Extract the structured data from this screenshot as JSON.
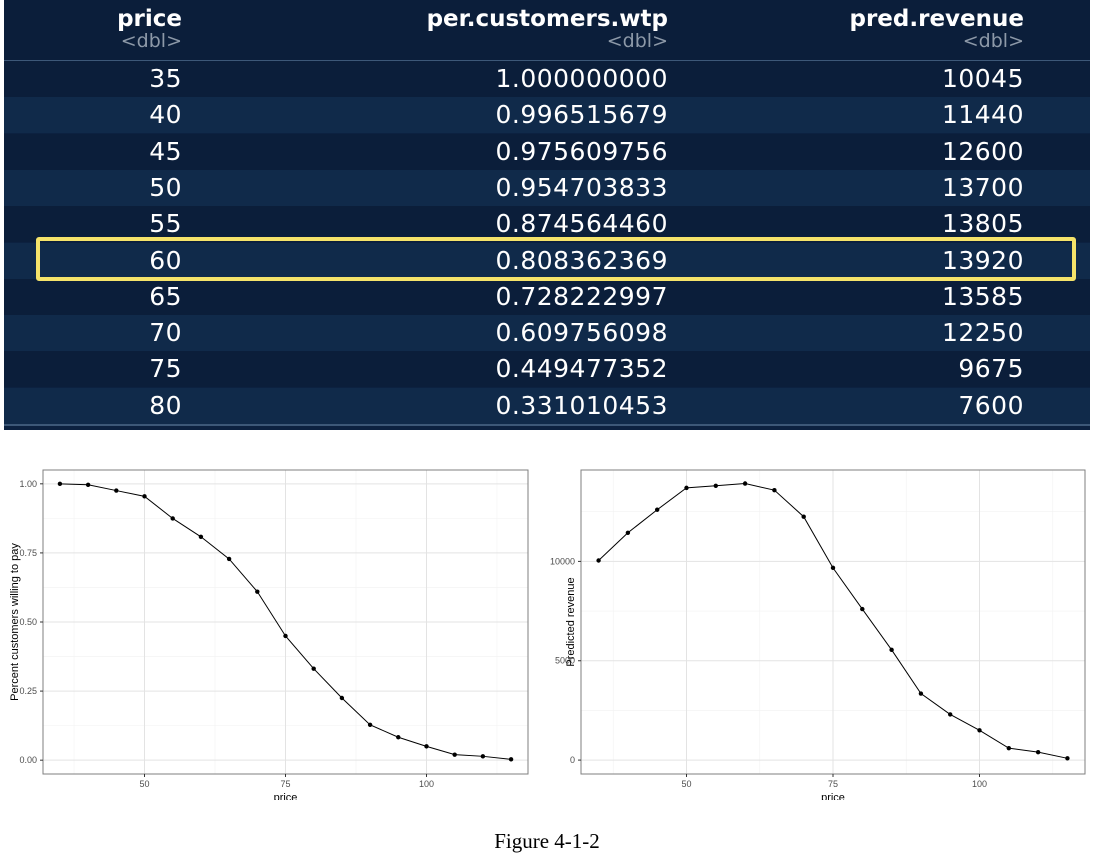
{
  "table": {
    "columns": [
      {
        "name": "price",
        "type": "<dbl>"
      },
      {
        "name": "per.customers.wtp",
        "type": "<dbl>"
      },
      {
        "name": "pred.revenue",
        "type": "<dbl>"
      }
    ],
    "rows": [
      {
        "price": "35",
        "wtp": "1.000000000",
        "revenue": "10045"
      },
      {
        "price": "40",
        "wtp": "0.996515679",
        "revenue": "11440"
      },
      {
        "price": "45",
        "wtp": "0.975609756",
        "revenue": "12600"
      },
      {
        "price": "50",
        "wtp": "0.954703833",
        "revenue": "13700"
      },
      {
        "price": "55",
        "wtp": "0.874564460",
        "revenue": "13805"
      },
      {
        "price": "60",
        "wtp": "0.808362369",
        "revenue": "13920"
      },
      {
        "price": "65",
        "wtp": "0.728222997",
        "revenue": "13585"
      },
      {
        "price": "70",
        "wtp": "0.609756098",
        "revenue": "12250"
      },
      {
        "price": "75",
        "wtp": "0.449477352",
        "revenue": "9675"
      },
      {
        "price": "80",
        "wtp": "0.331010453",
        "revenue": "7600"
      }
    ],
    "highlighted_row_index": 5,
    "colors": {
      "background": "#0c2140",
      "highlight": "#f5e36a"
    }
  },
  "chart_data": [
    {
      "type": "line",
      "title": "",
      "xlabel": "price",
      "ylabel": "Percent customers willing to pay",
      "x": [
        35,
        40,
        45,
        50,
        55,
        60,
        65,
        70,
        75,
        80,
        85,
        90,
        95,
        100,
        105,
        110,
        115
      ],
      "y": [
        1.0,
        0.9965,
        0.9756,
        0.9547,
        0.8746,
        0.8084,
        0.7282,
        0.6098,
        0.4495,
        0.331,
        0.225,
        0.128,
        0.083,
        0.05,
        0.02,
        0.014,
        0.003
      ],
      "xlim": [
        32,
        118
      ],
      "ylim": [
        -0.05,
        1.05
      ],
      "xticks": [
        50,
        75,
        100
      ],
      "yticks": [
        0.0,
        0.25,
        0.5,
        0.75,
        1.0
      ],
      "ytick_labels": [
        "0.00",
        "0.25",
        "0.50",
        "0.75",
        "1.00"
      ],
      "grid": true,
      "legend": "none"
    },
    {
      "type": "line",
      "title": "",
      "xlabel": "price",
      "ylabel": "Predicted revenue",
      "x": [
        35,
        40,
        45,
        50,
        55,
        60,
        65,
        70,
        75,
        80,
        85,
        90,
        95,
        100,
        105,
        110,
        115
      ],
      "y": [
        10045,
        11440,
        12600,
        13700,
        13805,
        13920,
        13585,
        12250,
        9675,
        7600,
        5550,
        3350,
        2300,
        1500,
        600,
        400,
        90
      ],
      "xlim": [
        32,
        118
      ],
      "ylim": [
        -700,
        14600
      ],
      "xticks": [
        50,
        75,
        100
      ],
      "yticks": [
        0,
        5000,
        10000
      ],
      "ytick_labels": [
        "0",
        "5000",
        "10000"
      ],
      "grid": true,
      "legend": "none"
    }
  ],
  "caption": "Figure 4-1-2"
}
